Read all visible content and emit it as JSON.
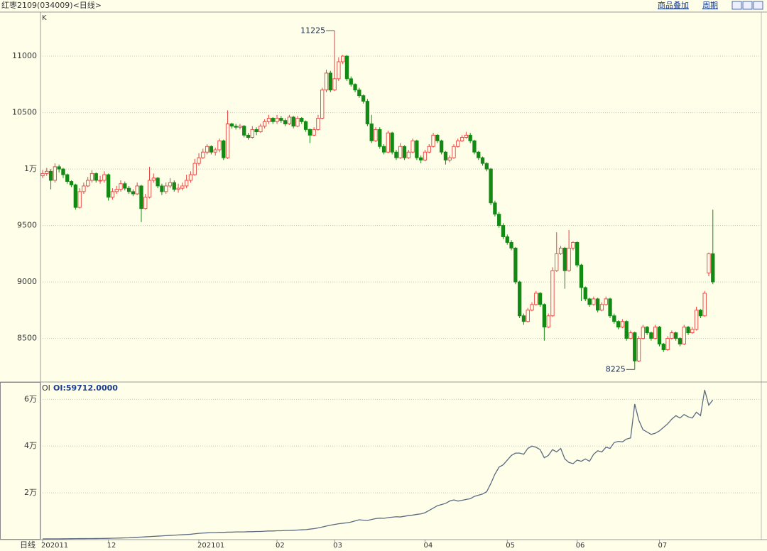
{
  "chart_data": [
    {
      "type": "candlestick",
      "title": "红枣2109(034009)<日线>",
      "pane_label": "K",
      "up_color": "#e8413e",
      "down_color": "#138a13",
      "grid": true,
      "ylim": [
        8120,
        11384
      ],
      "yticks": [
        11000,
        10500,
        {
          "value": 10000,
          "label": "1万"
        },
        9500,
        9000,
        8500
      ],
      "categories": [
        "202011",
        null,
        null,
        null,
        null,
        null,
        null,
        null,
        null,
        null,
        null,
        null,
        null,
        null,
        null,
        null,
        "12",
        null,
        null,
        null,
        null,
        null,
        null,
        null,
        null,
        null,
        null,
        null,
        null,
        null,
        null,
        null,
        null,
        null,
        null,
        null,
        null,
        null,
        "202101",
        null,
        null,
        null,
        null,
        null,
        null,
        null,
        null,
        null,
        null,
        null,
        null,
        null,
        null,
        null,
        null,
        null,
        null,
        "02",
        null,
        null,
        null,
        null,
        null,
        null,
        null,
        null,
        null,
        null,
        null,
        null,
        null,
        "03",
        null,
        null,
        null,
        null,
        null,
        null,
        null,
        null,
        null,
        null,
        null,
        null,
        null,
        null,
        null,
        null,
        null,
        null,
        null,
        null,
        null,
        "04",
        null,
        null,
        null,
        null,
        null,
        null,
        null,
        null,
        null,
        null,
        null,
        null,
        null,
        null,
        null,
        null,
        null,
        null,
        null,
        "05",
        null,
        null,
        null,
        null,
        null,
        null,
        null,
        null,
        null,
        null,
        null,
        null,
        null,
        null,
        null,
        null,
        "06",
        null,
        null,
        null,
        null,
        null,
        null,
        null,
        null,
        null,
        null,
        null,
        null,
        null,
        null,
        null,
        null,
        null,
        null,
        null,
        "07",
        null,
        null,
        null,
        null,
        null,
        null,
        null,
        null,
        null,
        null,
        null,
        null,
        null
      ],
      "candles": [
        [
          9940,
          9990,
          9920,
          9960
        ],
        [
          9960,
          10010,
          9940,
          9980
        ],
        [
          9980,
          10000,
          9820,
          9900
        ],
        [
          9900,
          10050,
          9880,
          10020
        ],
        [
          10020,
          10040,
          9970,
          10000
        ],
        [
          10000,
          10010,
          9920,
          9950
        ],
        [
          9950,
          9960,
          9870,
          9890
        ],
        [
          9890,
          9900,
          9840,
          9860
        ],
        [
          9860,
          9870,
          9640,
          9660
        ],
        [
          9660,
          9830,
          9650,
          9800
        ],
        [
          9800,
          9880,
          9780,
          9850
        ],
        [
          9850,
          9930,
          9840,
          9900
        ],
        [
          9900,
          9990,
          9880,
          9960
        ],
        [
          9960,
          9970,
          9880,
          9900
        ],
        [
          9900,
          9940,
          9870,
          9900
        ],
        [
          9900,
          9980,
          9880,
          9950
        ],
        [
          9950,
          9960,
          9720,
          9750
        ],
        [
          9750,
          9830,
          9730,
          9800
        ],
        [
          9800,
          9850,
          9780,
          9820
        ],
        [
          9820,
          9900,
          9800,
          9870
        ],
        [
          9870,
          9890,
          9810,
          9830
        ],
        [
          9830,
          9850,
          9780,
          9800
        ],
        [
          9800,
          9820,
          9760,
          9780
        ],
        [
          9780,
          9880,
          9770,
          9850
        ],
        [
          9850,
          9860,
          9530,
          9650
        ],
        [
          9650,
          9780,
          9640,
          9750
        ],
        [
          9750,
          10020,
          9740,
          9900
        ],
        [
          9900,
          9960,
          9880,
          9920
        ],
        [
          9920,
          9930,
          9830,
          9850
        ],
        [
          9850,
          9870,
          9770,
          9800
        ],
        [
          9800,
          9880,
          9780,
          9850
        ],
        [
          9850,
          9920,
          9830,
          9880
        ],
        [
          9880,
          9900,
          9800,
          9820
        ],
        [
          9820,
          9870,
          9790,
          9830
        ],
        [
          9830,
          9880,
          9810,
          9850
        ],
        [
          9850,
          9950,
          9830,
          9900
        ],
        [
          9900,
          9980,
          9880,
          9950
        ],
        [
          9950,
          10090,
          9940,
          10050
        ],
        [
          10050,
          10140,
          10030,
          10100
        ],
        [
          10100,
          10180,
          10090,
          10150
        ],
        [
          10150,
          10220,
          10130,
          10200
        ],
        [
          10200,
          10210,
          10130,
          10150
        ],
        [
          10150,
          10190,
          10120,
          10170
        ],
        [
          10170,
          10270,
          10150,
          10250
        ],
        [
          10250,
          10260,
          10080,
          10100
        ],
        [
          10100,
          10520,
          10090,
          10400
        ],
        [
          10400,
          10410,
          10360,
          10380
        ],
        [
          10380,
          10400,
          10350,
          10370
        ],
        [
          10370,
          10400,
          10350,
          10380
        ],
        [
          10380,
          10390,
          10280,
          10300
        ],
        [
          10300,
          10320,
          10260,
          10280
        ],
        [
          10280,
          10380,
          10270,
          10350
        ],
        [
          10350,
          10370,
          10300,
          10330
        ],
        [
          10330,
          10400,
          10320,
          10380
        ],
        [
          10380,
          10440,
          10360,
          10420
        ],
        [
          10420,
          10480,
          10400,
          10450
        ],
        [
          10450,
          10460,
          10400,
          10420
        ],
        [
          10420,
          10480,
          10400,
          10450
        ],
        [
          10450,
          10470,
          10410,
          10430
        ],
        [
          10430,
          10450,
          10380,
          10400
        ],
        [
          10400,
          10480,
          10390,
          10460
        ],
        [
          10460,
          10470,
          10360,
          10380
        ],
        [
          10380,
          10470,
          10370,
          10450
        ],
        [
          10450,
          10460,
          10400,
          10420
        ],
        [
          10420,
          10430,
          10330,
          10350
        ],
        [
          10350,
          10360,
          10230,
          10300
        ],
        [
          10300,
          10370,
          10290,
          10350
        ],
        [
          10350,
          10480,
          10340,
          10450
        ],
        [
          10450,
          10720,
          10440,
          10700
        ],
        [
          10700,
          10880,
          10680,
          10850
        ],
        [
          10850,
          10870,
          10680,
          10700
        ],
        [
          10700,
          11225,
          10690,
          10800
        ],
        [
          10800,
          10990,
          10780,
          10950
        ],
        [
          10950,
          11010,
          10930,
          11000
        ],
        [
          11000,
          11010,
          10780,
          10800
        ],
        [
          10800,
          10820,
          10730,
          10750
        ],
        [
          10750,
          10760,
          10680,
          10700
        ],
        [
          10700,
          10720,
          10630,
          10650
        ],
        [
          10650,
          10660,
          10580,
          10600
        ],
        [
          10600,
          10620,
          10380,
          10400
        ],
        [
          10400,
          10480,
          10230,
          10250
        ],
        [
          10250,
          10370,
          10240,
          10350
        ],
        [
          10350,
          10370,
          10180,
          10200
        ],
        [
          10200,
          10220,
          10130,
          10150
        ],
        [
          10150,
          10340,
          10140,
          10320
        ],
        [
          10320,
          10330,
          10130,
          10150
        ],
        [
          10150,
          10170,
          10080,
          10100
        ],
        [
          10100,
          10230,
          10090,
          10200
        ],
        [
          10200,
          10210,
          10080,
          10100
        ],
        [
          10100,
          10170,
          10090,
          10150
        ],
        [
          10150,
          10270,
          10140,
          10250
        ],
        [
          10250,
          10260,
          10080,
          10100
        ],
        [
          10100,
          10120,
          10050,
          10080
        ],
        [
          10080,
          10170,
          10070,
          10150
        ],
        [
          10150,
          10220,
          10140,
          10200
        ],
        [
          10200,
          10320,
          10190,
          10300
        ],
        [
          10300,
          10310,
          10230,
          10250
        ],
        [
          10250,
          10260,
          10130,
          10150
        ],
        [
          10150,
          10160,
          10040,
          10080
        ],
        [
          10080,
          10120,
          10060,
          10100
        ],
        [
          10100,
          10220,
          10090,
          10200
        ],
        [
          10200,
          10270,
          10190,
          10250
        ],
        [
          10250,
          10300,
          10240,
          10280
        ],
        [
          10280,
          10330,
          10270,
          10300
        ],
        [
          10300,
          10320,
          10230,
          10250
        ],
        [
          10250,
          10260,
          10130,
          10150
        ],
        [
          10150,
          10160,
          10080,
          10100
        ],
        [
          10100,
          10110,
          10030,
          10050
        ],
        [
          10050,
          10060,
          9980,
          10000
        ],
        [
          10000,
          10010,
          9680,
          9700
        ],
        [
          9700,
          9720,
          9580,
          9600
        ],
        [
          9600,
          9620,
          9480,
          9500
        ],
        [
          9500,
          9520,
          9380,
          9400
        ],
        [
          9400,
          9420,
          9330,
          9350
        ],
        [
          9350,
          9370,
          9280,
          9300
        ],
        [
          9300,
          9310,
          8980,
          9000
        ],
        [
          9000,
          9010,
          8680,
          8700
        ],
        [
          8700,
          8720,
          8620,
          8650
        ],
        [
          8650,
          8770,
          8640,
          8750
        ],
        [
          8750,
          8820,
          8740,
          8800
        ],
        [
          8800,
          8920,
          8790,
          8900
        ],
        [
          8900,
          8910,
          8780,
          8800
        ],
        [
          8800,
          8810,
          8480,
          8600
        ],
        [
          8600,
          8720,
          8590,
          8700
        ],
        [
          8700,
          9130,
          8690,
          9100
        ],
        [
          9100,
          9440,
          9090,
          9250
        ],
        [
          9250,
          9320,
          9240,
          9300
        ],
        [
          9300,
          9310,
          8940,
          9100
        ],
        [
          9100,
          9460,
          9090,
          9300
        ],
        [
          9300,
          9360,
          9280,
          9350
        ],
        [
          9350,
          9360,
          9130,
          9150
        ],
        [
          9150,
          9160,
          8830,
          8950
        ],
        [
          8950,
          8960,
          8830,
          8850
        ],
        [
          8850,
          8860,
          8780,
          8800
        ],
        [
          8800,
          8870,
          8790,
          8850
        ],
        [
          8850,
          8860,
          8730,
          8750
        ],
        [
          8750,
          8820,
          8740,
          8800
        ],
        [
          8800,
          8870,
          8790,
          8850
        ],
        [
          8850,
          8860,
          8680,
          8700
        ],
        [
          8700,
          8720,
          8630,
          8650
        ],
        [
          8650,
          8660,
          8580,
          8600
        ],
        [
          8600,
          8670,
          8590,
          8650
        ],
        [
          8650,
          8660,
          8480,
          8500
        ],
        [
          8500,
          8570,
          8490,
          8550
        ],
        [
          8550,
          8560,
          8225,
          8300
        ],
        [
          8300,
          8520,
          8290,
          8500
        ],
        [
          8500,
          8620,
          8490,
          8600
        ],
        [
          8600,
          8610,
          8530,
          8550
        ],
        [
          8550,
          8560,
          8480,
          8500
        ],
        [
          8500,
          8620,
          8490,
          8600
        ],
        [
          8600,
          8610,
          8430,
          8450
        ],
        [
          8450,
          8460,
          8380,
          8400
        ],
        [
          8400,
          8520,
          8390,
          8500
        ],
        [
          8500,
          8570,
          8490,
          8550
        ],
        [
          8550,
          8560,
          8480,
          8500
        ],
        [
          8500,
          8510,
          8430,
          8450
        ],
        [
          8450,
          8620,
          8440,
          8600
        ],
        [
          8600,
          8610,
          8530,
          8550
        ],
        [
          8550,
          8600,
          8540,
          8580
        ],
        [
          8580,
          8780,
          8570,
          8750
        ],
        [
          8750,
          8760,
          8680,
          8700
        ],
        [
          8700,
          8920,
          8690,
          8900
        ],
        [
          9080,
          9260,
          9050,
          9250
        ],
        [
          9250,
          9640,
          8980,
          9000
        ]
      ]
    },
    {
      "type": "line",
      "pane_label": "OI",
      "value_text": "OI:59712.0000",
      "color": "#5a6a80",
      "grid": true,
      "ylim": [
        0,
        67400
      ],
      "yticks": [
        {
          "value": 60000,
          "label": "6万"
        },
        {
          "value": 40000,
          "label": "4万"
        },
        {
          "value": 20000,
          "label": "2万"
        }
      ],
      "values": [
        300,
        320,
        330,
        340,
        350,
        360,
        380,
        400,
        420,
        430,
        440,
        450,
        460,
        480,
        500,
        520,
        550,
        600,
        650,
        700,
        750,
        800,
        900,
        1000,
        1100,
        1200,
        1300,
        1400,
        1500,
        1600,
        1700,
        1800,
        1900,
        2000,
        2100,
        2200,
        2300,
        2500,
        2700,
        2800,
        2900,
        3000,
        3000,
        3100,
        3100,
        3200,
        3200,
        3300,
        3300,
        3300,
        3400,
        3400,
        3500,
        3500,
        3600,
        3700,
        3700,
        3800,
        3800,
        3900,
        3900,
        4000,
        4100,
        4200,
        4300,
        4500,
        4700,
        5000,
        5400,
        5800,
        6200,
        6500,
        6800,
        7000,
        7200,
        7500,
        8000,
        8500,
        8300,
        8200,
        8600,
        9000,
        9200,
        9100,
        9400,
        9600,
        9800,
        9700,
        10000,
        10300,
        10500,
        10800,
        11000,
        11500,
        12500,
        13500,
        14500,
        15000,
        15500,
        16500,
        17000,
        16500,
        16800,
        17200,
        17500,
        18500,
        19000,
        19500,
        20500,
        24000,
        28000,
        31000,
        32000,
        34000,
        36000,
        37000,
        37000,
        36500,
        39000,
        40000,
        39500,
        38500,
        35000,
        36000,
        38500,
        37500,
        39000,
        34500,
        33000,
        32500,
        34000,
        33500,
        34500,
        33500,
        36500,
        38000,
        37500,
        39500,
        39000,
        41500,
        42000,
        41800,
        43000,
        43500,
        58000,
        51000,
        47000,
        46000,
        45000,
        45500,
        46500,
        48000,
        49500,
        51500,
        53000,
        52000,
        53500,
        52500,
        52000,
        54500,
        53000,
        64000,
        57500,
        59712
      ]
    }
  ],
  "toolbar": {
    "links": [
      "商品叠加",
      "周期"
    ]
  },
  "period_label": "日线"
}
